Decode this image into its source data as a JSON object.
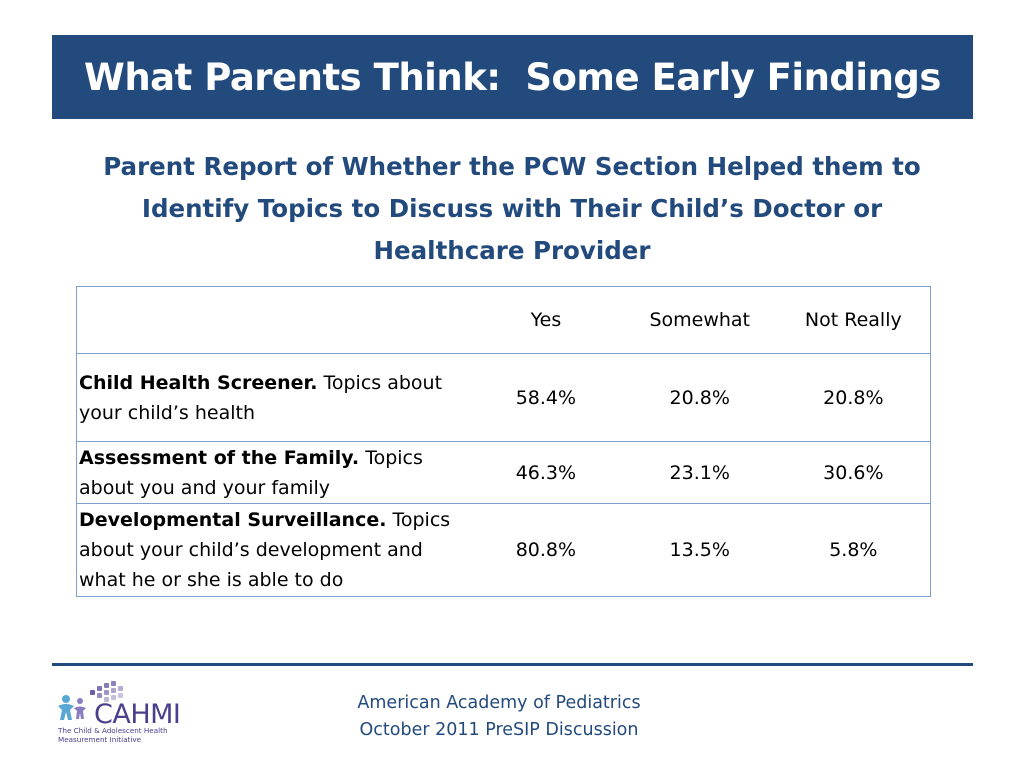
{
  "slide": {
    "title": "What Parents Think:  Some Early Findings",
    "subtitle_lines": [
      "Parent Report of Whether the PCW Section Helped them to",
      "Identify Topics to Discuss with Their Child’s Doctor or",
      "Healthcare Provider"
    ]
  },
  "table": {
    "headers": [
      "",
      "Yes",
      "Somewhat",
      "Not Really"
    ],
    "rows": [
      {
        "label_bold": "Child Health Screener.",
        "label_rest": " Topics about your child’s health",
        "yes": "58.4%",
        "somewhat": "20.8%",
        "not_really": "20.8%"
      },
      {
        "label_bold": "Assessment of the Family.",
        "label_rest": "  Topics about you and your family",
        "yes": "46.3%",
        "somewhat": "23.1%",
        "not_really": "30.6%"
      },
      {
        "label_bold": "Developmental Surveillance.",
        "label_rest": "  Topics about your child’s development and what he or she is able to do",
        "yes": "80.8%",
        "somewhat": "13.5%",
        "not_really": "5.8%"
      }
    ]
  },
  "footer": {
    "line1": "American Academy of Pediatrics",
    "line2": "October 2011 PreSIP Discussion"
  },
  "logo": {
    "text": "CAHMI",
    "caption_line1": "The Child & Adolescent Health",
    "caption_line2": "Measurement Initiative"
  },
  "colors": {
    "brand_blue": "#234a7d",
    "table_border": "#7f9fcf",
    "logo_purple": "#6a5aa8"
  }
}
